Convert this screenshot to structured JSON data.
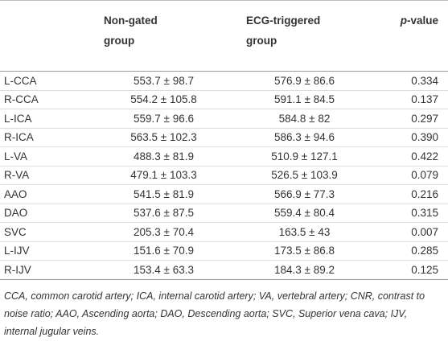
{
  "table": {
    "header": {
      "col1": "Non-gated group",
      "col2": "ECG-triggered group",
      "col3": {
        "italic": "p",
        "rest": "-value"
      }
    },
    "rows": [
      [
        "L-CCA",
        "553.7 ± 98.7",
        "576.9 ± 86.6",
        "0.334"
      ],
      [
        "R-CCA",
        "554.2 ± 105.8",
        "591.1 ± 84.5",
        "0.137"
      ],
      [
        "L-ICA",
        "559.7 ± 96.6",
        "584.8 ± 82",
        "0.297"
      ],
      [
        "R-ICA",
        "563.5 ± 102.3",
        "586.3 ± 94.6",
        "0.390"
      ],
      [
        "L-VA",
        "488.3 ± 81.9",
        "510.9 ± 127.1",
        "0.422"
      ],
      [
        "R-VA",
        "479.1 ± 103.3",
        "526.5 ± 103.9",
        "0.079"
      ],
      [
        "AAO",
        "541.5 ± 81.9",
        "566.9 ± 77.3",
        "0.216"
      ],
      [
        "DAO",
        "537.6 ± 87.5",
        "559.4 ± 80.4",
        "0.315"
      ],
      [
        "SVC",
        "205.3 ± 70.4",
        "163.5 ± 43",
        "0.007"
      ],
      [
        "L-IJV",
        "151.6 ± 70.9",
        "173.5 ± 86.8",
        "0.285"
      ],
      [
        "R-IJV",
        "153.4 ± 63.3",
        "184.3 ± 89.2",
        "0.125"
      ]
    ],
    "footnote": "CCA, common carotid artery; ICA, internal carotid artery; VA, vertebral artery; CNR, contrast to noise ratio; AAO, Ascending aorta; DAO, Descending aorta; SVC, Superior vena cava; IJV, internal jugular veins."
  }
}
